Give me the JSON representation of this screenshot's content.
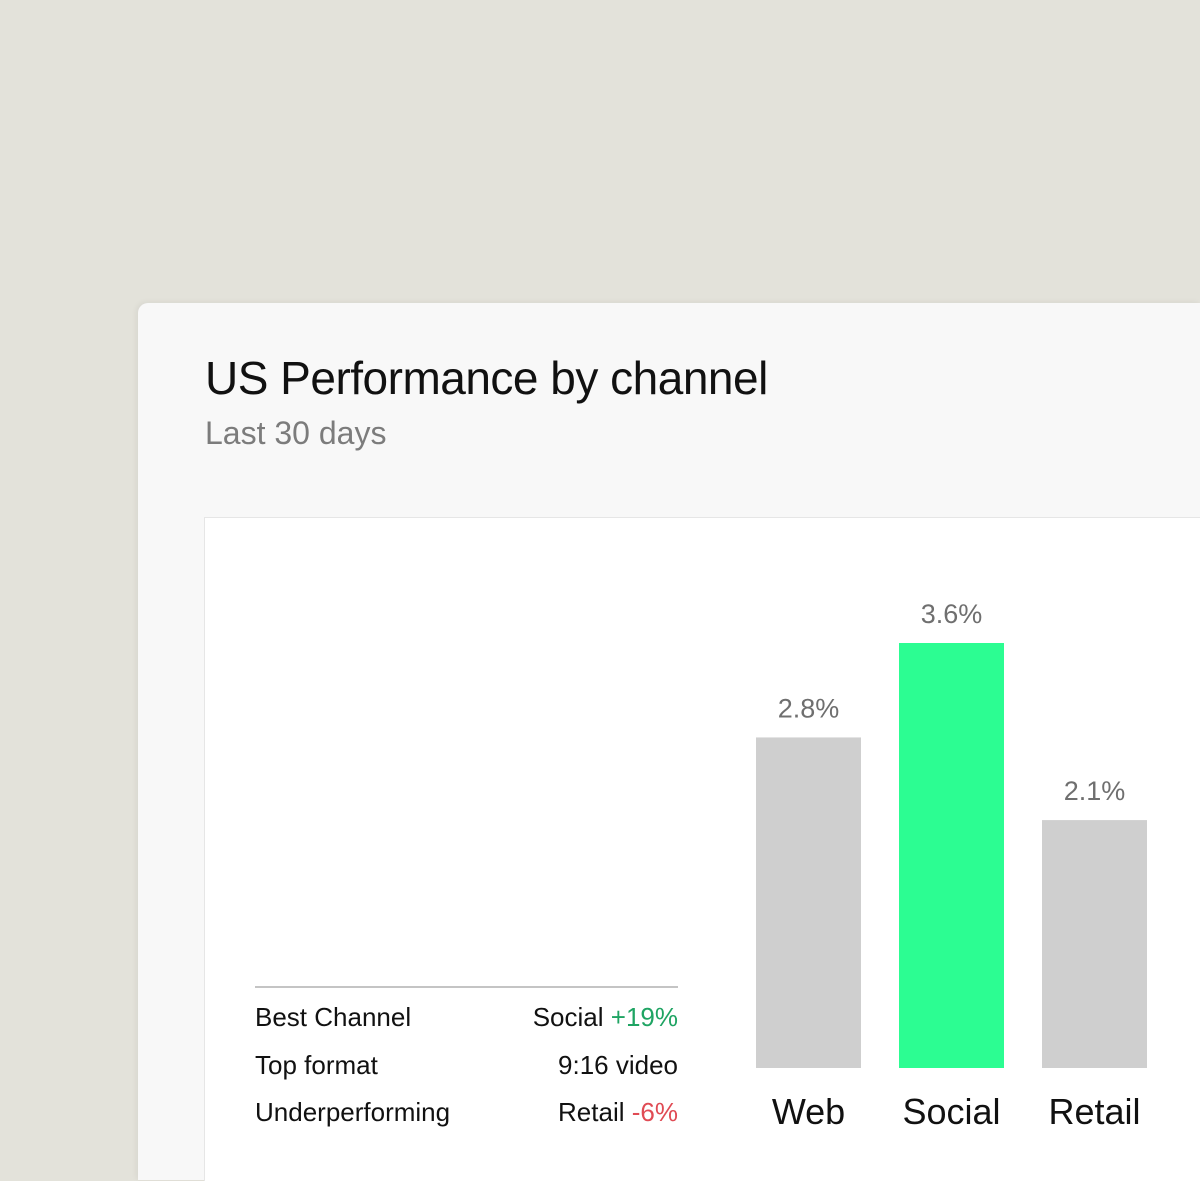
{
  "card": {
    "title": "US Performance by channel",
    "subtitle": "Last 30 days"
  },
  "stats": {
    "rows": [
      {
        "label": "Best Channel",
        "value": "Social",
        "delta": "+19%",
        "delta_kind": "positive"
      },
      {
        "label": "Top format",
        "value": "9:16 video",
        "delta": "",
        "delta_kind": "none"
      },
      {
        "label": "Underperforming",
        "value": "Retail",
        "delta": "-6%",
        "delta_kind": "negative"
      }
    ]
  },
  "colors": {
    "highlight": "#2cfd92",
    "bar_default": "#cfcfcf",
    "positive": "#1fa463",
    "negative": "#e04b54"
  },
  "chart_data": {
    "type": "bar",
    "title": "US Performance by channel",
    "subtitle": "Last 30 days",
    "categories": [
      "Web",
      "Social",
      "Retail"
    ],
    "values": [
      2.8,
      3.6,
      2.1
    ],
    "value_labels": [
      "2.8%",
      "3.6%",
      "2.1%"
    ],
    "highlight_index": 1,
    "ylim": [
      0,
      3.6
    ],
    "grid": false,
    "legend": "none"
  }
}
